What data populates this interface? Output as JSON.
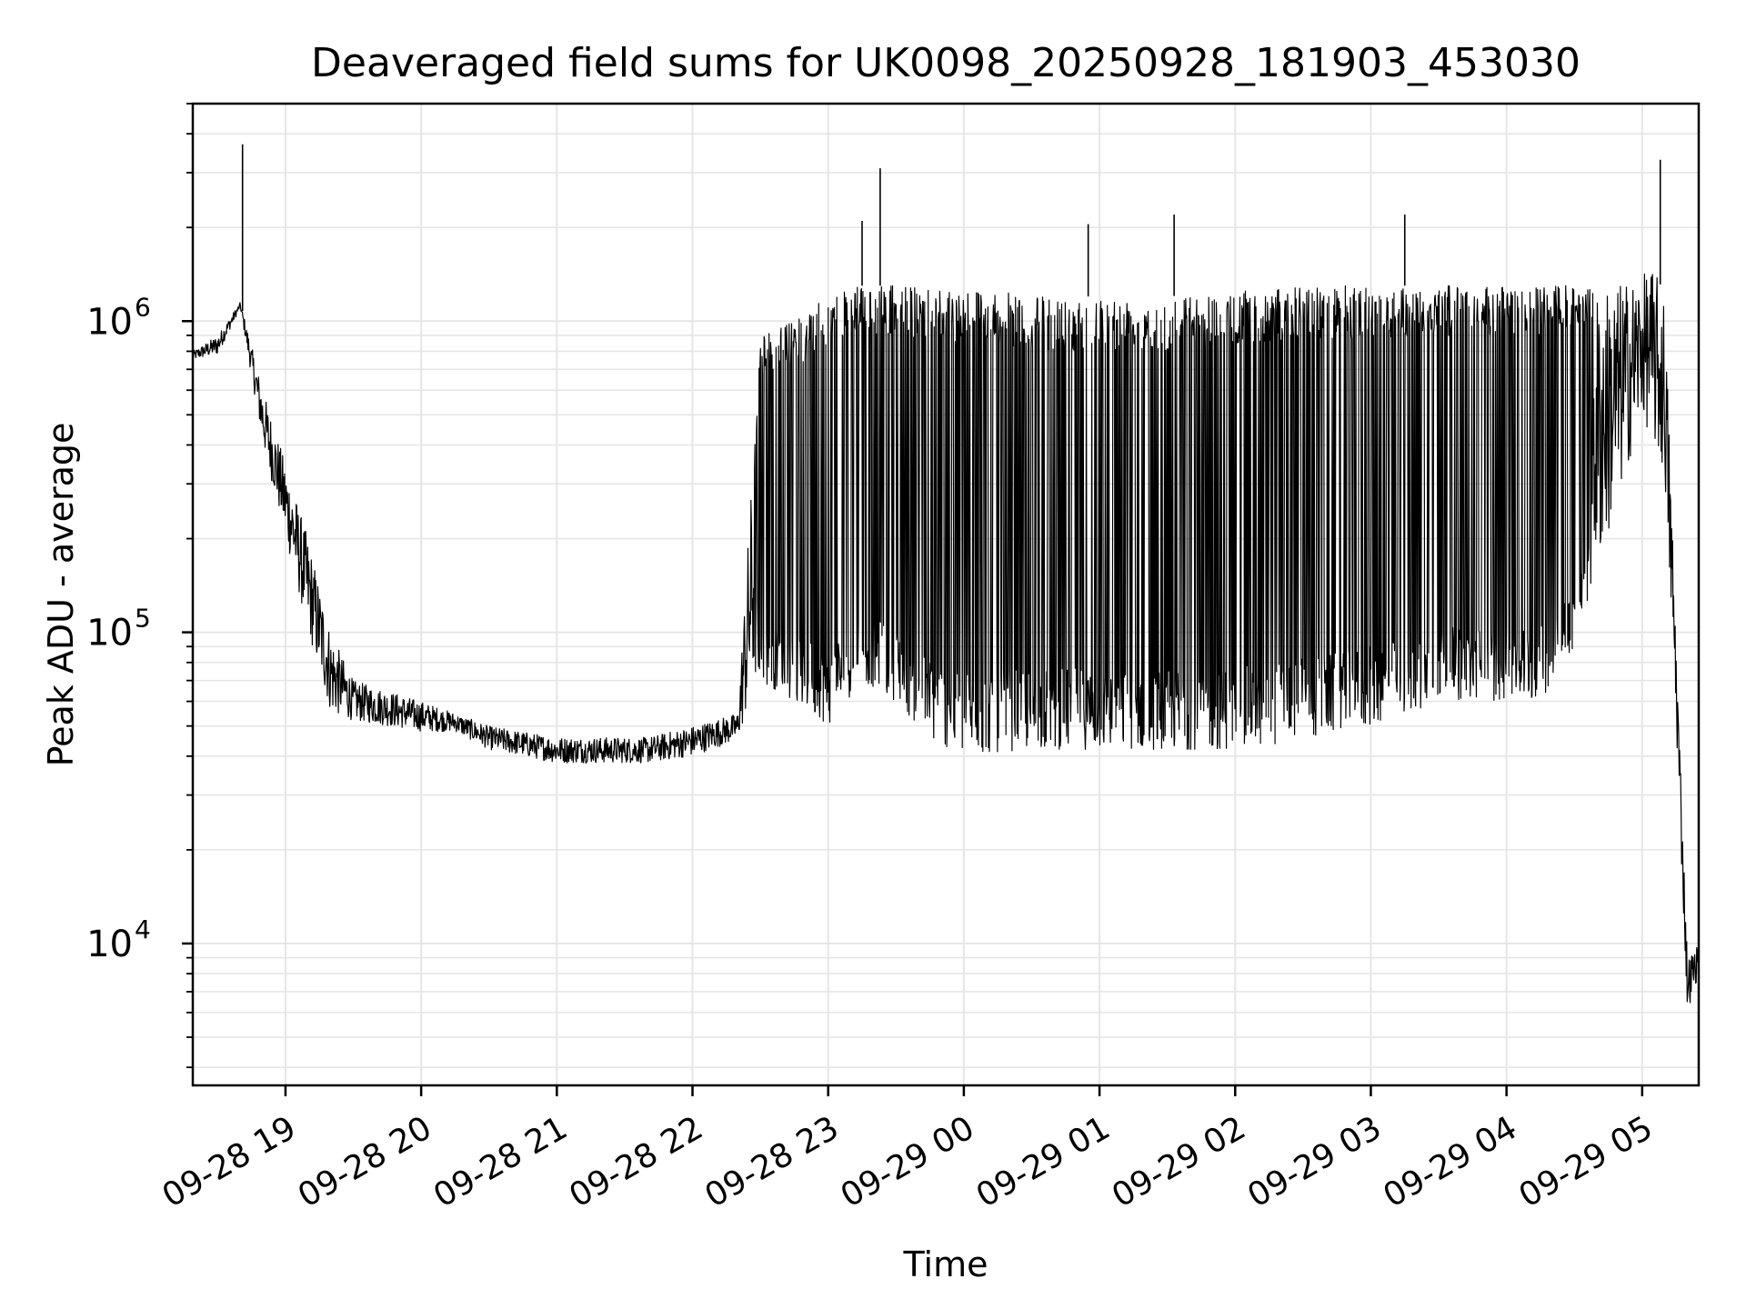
{
  "chart_data": {
    "type": "line",
    "title": "Deaveraged field sums for UK0098_20250928_181903_453030",
    "xlabel": "Time",
    "ylabel": "Peak ADU - average",
    "yscale": "log",
    "ylim": [
      3500,
      5000000
    ],
    "xlim": [
      "2025-09-28 18:19",
      "2025-09-29 05:25"
    ],
    "grid": true,
    "line_color": "#000000",
    "grid_color": "#e6e6e6",
    "x_ticks": [
      {
        "t": "2025-09-28 19:00",
        "label": "09-28 19"
      },
      {
        "t": "2025-09-28 20:00",
        "label": "09-28 20"
      },
      {
        "t": "2025-09-28 21:00",
        "label": "09-28 21"
      },
      {
        "t": "2025-09-28 22:00",
        "label": "09-28 22"
      },
      {
        "t": "2025-09-28 23:00",
        "label": "09-28 23"
      },
      {
        "t": "2025-09-29 00:00",
        "label": "09-29 00"
      },
      {
        "t": "2025-09-29 01:00",
        "label": "09-29 01"
      },
      {
        "t": "2025-09-29 02:00",
        "label": "09-29 02"
      },
      {
        "t": "2025-09-29 03:00",
        "label": "09-29 03"
      },
      {
        "t": "2025-09-29 04:00",
        "label": "09-29 04"
      },
      {
        "t": "2025-09-29 05:00",
        "label": "09-29 05"
      }
    ],
    "y_ticks": [
      {
        "value": 10000,
        "base": "10",
        "exp": "4"
      },
      {
        "value": 100000,
        "base": "10",
        "exp": "5"
      },
      {
        "value": 1000000,
        "base": "10",
        "exp": "6"
      }
    ],
    "series": [
      {
        "envelope": {
          "x": [
            "2025-09-28 18:19",
            "2025-09-28 18:30",
            "2025-09-28 18:40",
            "2025-09-28 18:50",
            "2025-09-28 19:00",
            "2025-09-28 19:10",
            "2025-09-28 19:20",
            "2025-09-28 19:30",
            "2025-09-28 19:45",
            "2025-09-28 20:00",
            "2025-09-28 20:15",
            "2025-09-28 20:30",
            "2025-09-28 20:45",
            "2025-09-28 21:00",
            "2025-09-28 21:20",
            "2025-09-28 21:40",
            "2025-09-28 22:00",
            "2025-09-28 22:20",
            "2025-09-28 22:30",
            "2025-09-28 22:45",
            "2025-09-28 23:00",
            "2025-09-28 23:15",
            "2025-09-28 23:30",
            "2025-09-28 23:45",
            "2025-09-29 00:00",
            "2025-09-29 00:30",
            "2025-09-29 01:00",
            "2025-09-29 01:30",
            "2025-09-29 02:00",
            "2025-09-29 02:30",
            "2025-09-29 03:00",
            "2025-09-29 03:30",
            "2025-09-29 04:00",
            "2025-09-29 04:15",
            "2025-09-29 04:30",
            "2025-09-29 04:45",
            "2025-09-29 05:00",
            "2025-09-29 05:05",
            "2025-09-29 05:10",
            "2025-09-29 05:15",
            "2025-09-29 05:20",
            "2025-09-29 05:25"
          ],
          "low": [
            750000,
            780000,
            1100000,
            400000,
            200000,
            100000,
            55000,
            52000,
            50000,
            48000,
            48000,
            42000,
            40000,
            38000,
            38000,
            38000,
            40000,
            45000,
            70000,
            60000,
            50000,
            70000,
            60000,
            45000,
            40000,
            42000,
            42000,
            42000,
            42000,
            45000,
            50000,
            60000,
            60000,
            60000,
            90000,
            200000,
            500000,
            400000,
            300000,
            50000,
            6000,
            8000
          ],
          "high": [
            800000,
            900000,
            1150000,
            600000,
            350000,
            200000,
            100000,
            70000,
            65000,
            60000,
            55000,
            50000,
            48000,
            46000,
            46000,
            46000,
            50000,
            55000,
            900000,
            1000000,
            1200000,
            1300000,
            1300000,
            1300000,
            1300000,
            1200000,
            1200000,
            1200000,
            1250000,
            1300000,
            1300000,
            1300000,
            1300000,
            1300000,
            1300000,
            1300000,
            1400000,
            1500000,
            1200000,
            100000,
            9000,
            10000
          ]
        },
        "spikes": [
          {
            "t": "2025-09-28 18:41",
            "value": 3700000
          },
          {
            "t": "2025-09-28 23:23",
            "value": 3100000
          },
          {
            "t": "2025-09-29 05:08",
            "value": 3300000
          },
          {
            "t": "2025-09-29 03:15",
            "value": 2200000
          },
          {
            "t": "2025-09-29 00:55",
            "value": 2050000
          },
          {
            "t": "2025-09-29 01:33",
            "value": 2200000
          },
          {
            "t": "2025-09-28 23:15",
            "value": 2100000
          }
        ]
      }
    ]
  }
}
